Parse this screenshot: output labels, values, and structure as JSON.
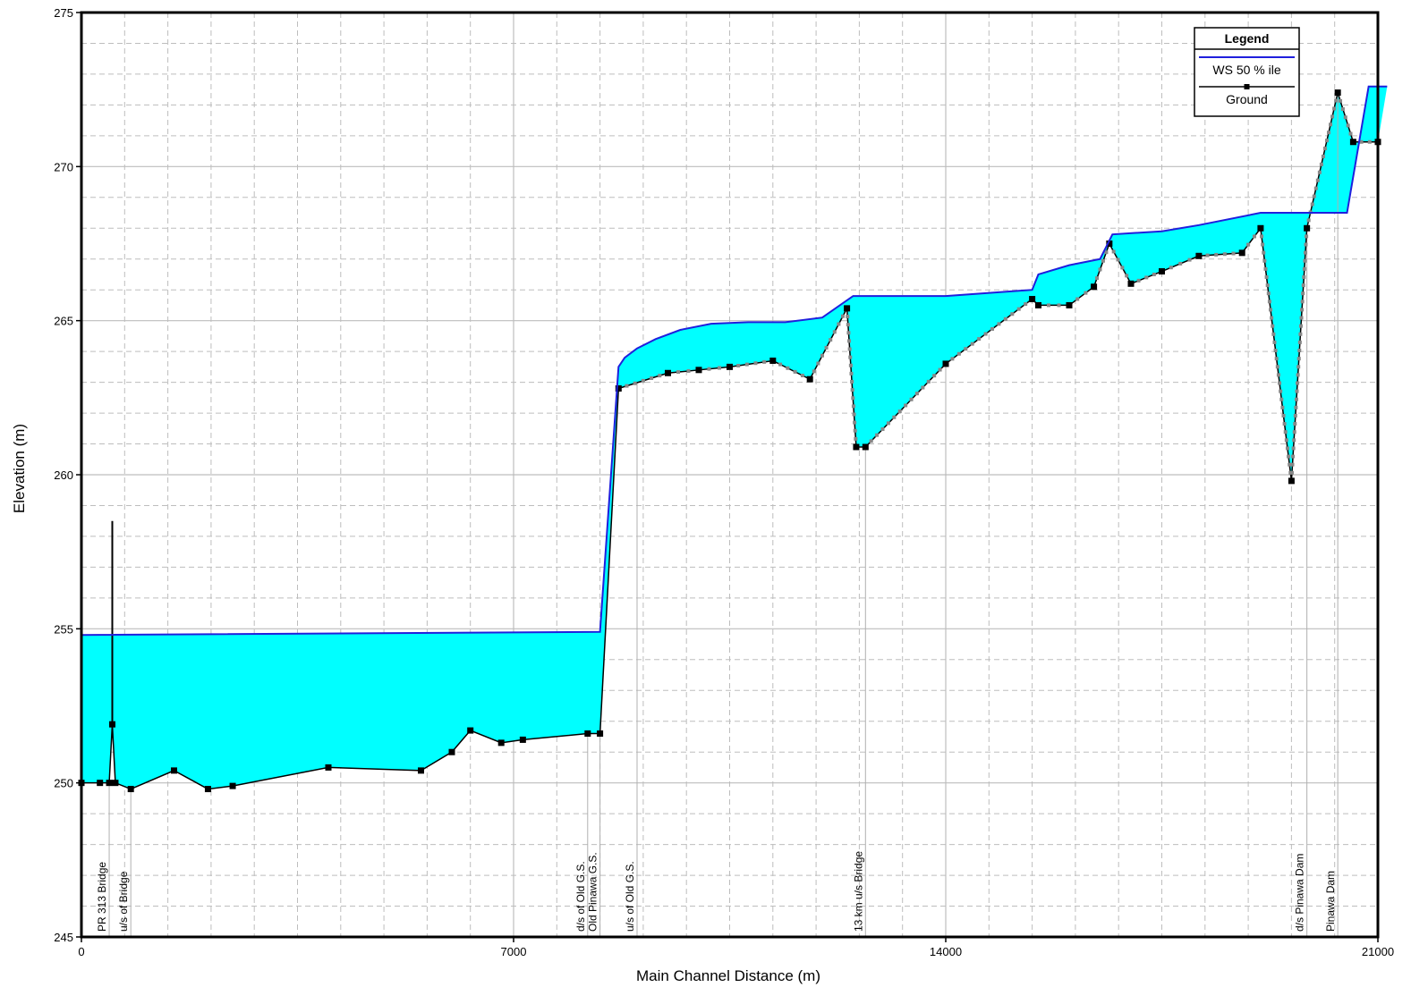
{
  "chart_data": {
    "type": "line",
    "xlabel": "Main Channel Distance (m)",
    "ylabel": "Elevation (m)",
    "xlim": [
      0,
      21000
    ],
    "ylim": [
      245,
      275
    ],
    "x_ticks": [
      0,
      7000,
      14000,
      21000
    ],
    "y_ticks": [
      245,
      250,
      255,
      260,
      265,
      270,
      275
    ],
    "grid": true,
    "legend": {
      "title": "Legend",
      "position": "top-right",
      "entries": [
        "WS  50 % ile",
        "Ground"
      ]
    },
    "colors": {
      "water_fill": "#00ffff",
      "water_surface": "#1f1fdd",
      "ground": "#000000",
      "ground_dotted": "#888888",
      "grid": "#bdbdbd"
    },
    "series": [
      {
        "name": "WS  50 % ile",
        "x": [
          0,
          8400,
          8700,
          8800,
          9000,
          9300,
          9700,
          10200,
          10800,
          11400,
          12000,
          12500,
          13800,
          14000,
          15400,
          15500,
          16000,
          16500,
          16700,
          17500,
          18100,
          19100,
          20500,
          20850,
          21150
        ],
        "y": [
          254.8,
          254.9,
          263.5,
          263.8,
          264.1,
          264.4,
          264.7,
          264.9,
          264.95,
          264.95,
          265.1,
          265.8,
          265.8,
          265.8,
          266.0,
          266.5,
          266.8,
          267.0,
          267.8,
          267.9,
          268.1,
          268.5,
          268.5,
          272.6,
          272.6
        ]
      },
      {
        "name": "Ground",
        "x": [
          0,
          300,
          450,
          500,
          550,
          800,
          1500,
          2050,
          2450,
          4000,
          5500,
          6000,
          6300,
          6800,
          7150,
          8200,
          8400,
          8700,
          9500,
          10000,
          10500,
          11200,
          11800,
          12400,
          12550,
          12700,
          14000,
          15400,
          15500,
          16000,
          16400,
          16650,
          17000,
          17500,
          18100,
          18800,
          19100,
          19600,
          19850,
          20350,
          20600,
          21000
        ],
        "y": [
          250.0,
          250.0,
          250.0,
          251.9,
          250.0,
          249.8,
          250.4,
          249.8,
          249.9,
          250.5,
          250.4,
          251.0,
          251.7,
          251.3,
          251.4,
          251.6,
          251.6,
          262.8,
          263.3,
          263.4,
          263.5,
          263.7,
          263.1,
          265.4,
          260.9,
          260.9,
          263.6,
          265.7,
          265.5,
          265.5,
          266.1,
          267.5,
          266.2,
          266.6,
          267.1,
          267.2,
          268.0,
          259.8,
          268.0,
          272.4,
          270.8,
          270.8
        ]
      }
    ],
    "annotations": [
      {
        "x": 450,
        "text": "PR 313 Bridge"
      },
      {
        "x": 800,
        "text": "u/s of Bridge"
      },
      {
        "x": 8200,
        "text": "d/s of Old G.S."
      },
      {
        "x": 8400,
        "text": "Old Pinawa G.S."
      },
      {
        "x": 9000,
        "text": "u/s of Old G.S."
      },
      {
        "x": 12700,
        "text": "13 km u/s Bridge"
      },
      {
        "x": 19850,
        "text": "d/s Pinawa Dam"
      },
      {
        "x": 20350,
        "text": "Pinawa Dam"
      }
    ],
    "bridge_pier": {
      "x": 500,
      "y_bottom": 251.9,
      "y_top": 258.5
    }
  }
}
